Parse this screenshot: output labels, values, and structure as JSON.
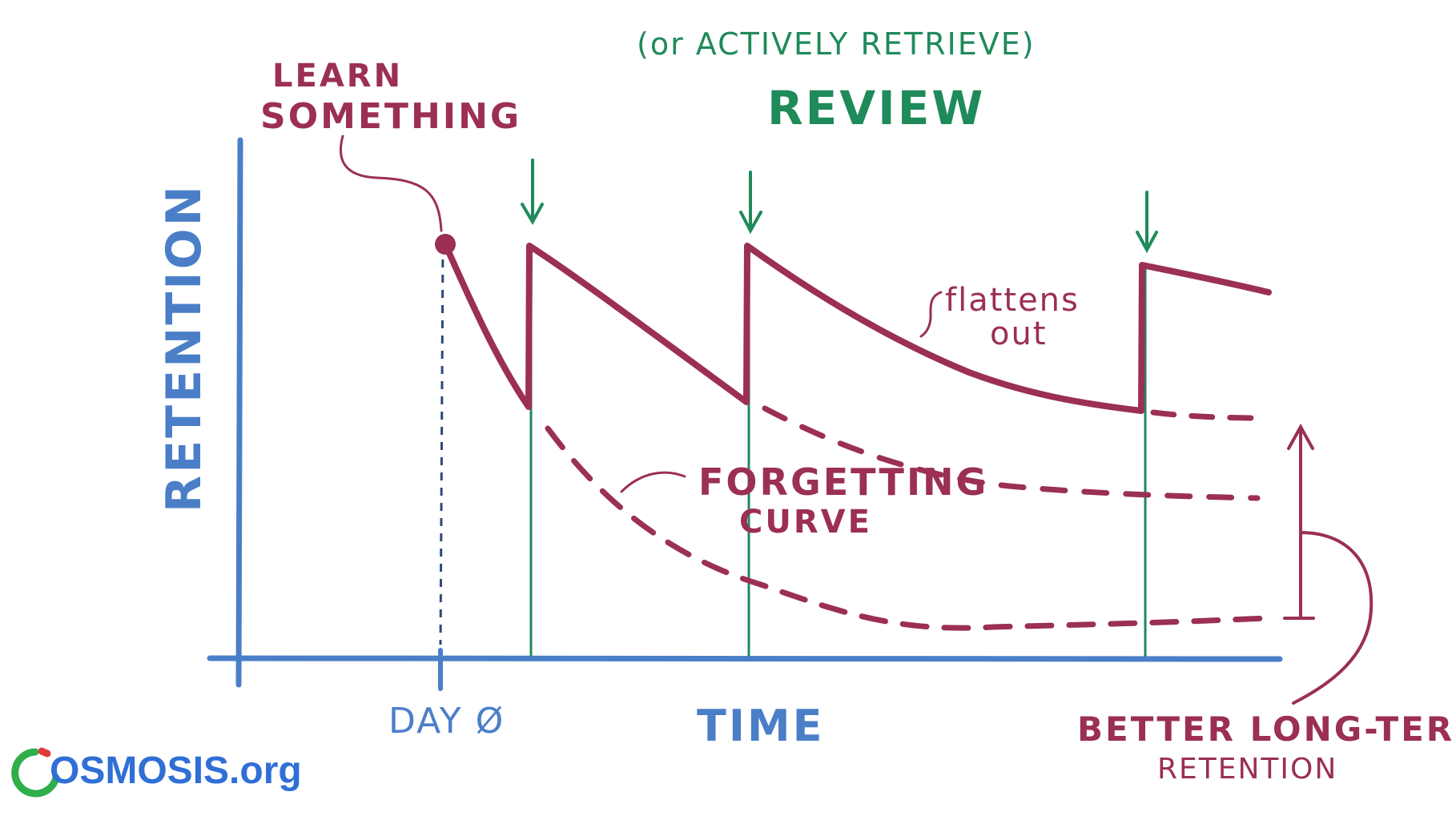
{
  "labels": {
    "learn_line1": "LEARN",
    "learn_line2": "SOMETHING",
    "review_paren": "(or ACTIVELY RETRIEVE)",
    "review": "REVIEW",
    "y_axis": "RETENTION",
    "x_axis": "TIME",
    "day_zero": "DAY Ø",
    "flattens_line1": "flattens",
    "flattens_line2": "out",
    "forgetting_line1": "FORGETTING",
    "forgetting_line2": "CURVE",
    "better_line1": "BETTER LONG-TERM",
    "better_line2": "RETENTION"
  },
  "logo": {
    "text": "OSMOSIS.org"
  },
  "colors": {
    "axis_blue": "#4a7fc8",
    "curve_maroon": "#9b2f55",
    "review_green": "#1f8a5a",
    "logo_blue": "#2f6fd6",
    "logo_green": "#2fae4a",
    "logo_red": "#e03a3a"
  }
}
